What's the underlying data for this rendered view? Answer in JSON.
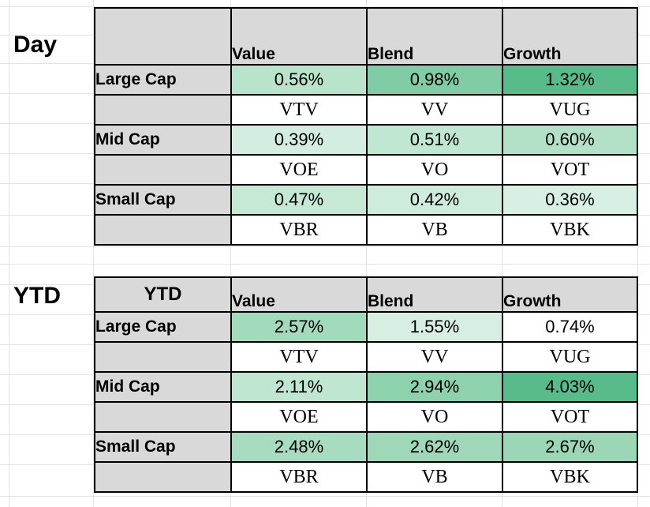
{
  "day": {
    "side_label": "Day",
    "corner_label": "",
    "headers": [
      "Value",
      "Blend",
      "Growth"
    ],
    "rows": [
      {
        "label": "Large Cap",
        "returns": [
          "0.56%",
          "0.98%",
          "1.32%"
        ],
        "tickers": [
          "VTV",
          "VV",
          "VUG"
        ],
        "colors": [
          "#b8e4cc",
          "#80ccA4",
          "#57bb8a"
        ]
      },
      {
        "label": "Mid Cap",
        "returns": [
          "0.39%",
          "0.51%",
          "0.60%"
        ],
        "tickers": [
          "VOE",
          "VO",
          "VOT"
        ],
        "colors": [
          "#d3eee0",
          "#c0e7d2",
          "#b2e1c8"
        ]
      },
      {
        "label": "Small Cap",
        "returns": [
          "0.47%",
          "0.42%",
          "0.36%"
        ],
        "tickers": [
          "VBR",
          "VB",
          "VBK"
        ],
        "colors": [
          "#c6e9d6",
          "#ceecdc",
          "#d8f0e3"
        ]
      }
    ]
  },
  "ytd": {
    "side_label": "YTD",
    "corner_label": "YTD",
    "headers": [
      "Value",
      "Blend",
      "Growth"
    ],
    "rows": [
      {
        "label": "Large Cap",
        "returns": [
          "2.57%",
          "1.55%",
          "0.74%"
        ],
        "tickers": [
          "VTV",
          "VV",
          "VUG"
        ],
        "colors": [
          "#a2dabc",
          "#d6efe2",
          "#ffffff"
        ]
      },
      {
        "label": "Mid Cap",
        "returns": [
          "2.11%",
          "2.94%",
          "4.03%"
        ],
        "tickers": [
          "VOE",
          "VO",
          "VOT"
        ],
        "colors": [
          "#bee6d0",
          "#8ed2ad",
          "#57bb8a"
        ]
      },
      {
        "label": "Small Cap",
        "returns": [
          "2.48%",
          "2.62%",
          "2.67%"
        ],
        "tickers": [
          "VBR",
          "VB",
          "VBK"
        ],
        "colors": [
          "#a8dcc0",
          "#9ed8b8",
          "#9bd6b6"
        ]
      }
    ]
  }
}
